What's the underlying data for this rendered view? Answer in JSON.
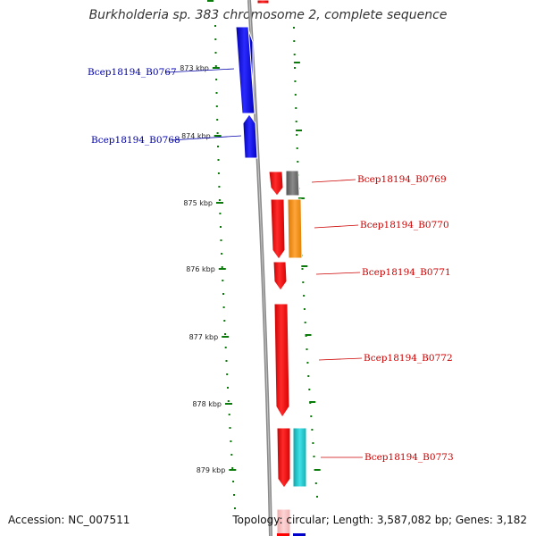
{
  "title": "Burkholderia sp. 383 chromosome 2, complete sequence",
  "accession": "Accession: NC_007511",
  "summary": "Topology: circular; Length: 3,587,082 bp; Genes: 3,182",
  "colors": {
    "forward": "#0000cc",
    "reverse": "#ff0000",
    "reverse_faint": "#f5b8b8",
    "gray_feature": "#707070",
    "orange_feature": "#f5930f",
    "cyan_feature": "#18c2c8",
    "backbone": "#888888",
    "tick": "#0a7a0a",
    "label_forward": "#0000aa",
    "label_reverse": "#cc0000"
  },
  "ticks": [
    "873 kbp",
    "874 kbp",
    "875 kbp",
    "876 kbp",
    "877 kbp",
    "878 kbp",
    "879 kbp"
  ],
  "genes": [
    {
      "label": "Bcep18194_B0767",
      "strand": "forward"
    },
    {
      "label": "Bcep18194_B0768",
      "strand": "forward"
    },
    {
      "label": "Bcep18194_B0769",
      "strand": "reverse"
    },
    {
      "label": "Bcep18194_B0770",
      "strand": "reverse"
    },
    {
      "label": "Bcep18194_B0771",
      "strand": "reverse"
    },
    {
      "label": "Bcep18194_B0772",
      "strand": "reverse"
    },
    {
      "label": "Bcep18194_B0773",
      "strand": "reverse"
    }
  ]
}
